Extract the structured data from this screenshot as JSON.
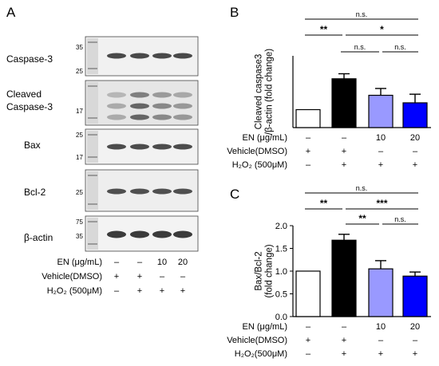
{
  "panel_a": {
    "letter": "A",
    "blots": [
      {
        "name": "Caspase-3",
        "markers": [
          "35",
          "25"
        ],
        "band_color": "#2b2b2b",
        "bg": "#f1f1f1"
      },
      {
        "name": "Cleaved Caspase-3",
        "markers": [
          "17"
        ],
        "band_color": "#3a3a3a",
        "bg": "#e6e6e6"
      },
      {
        "name": "Bax",
        "markers": [
          "25",
          "17"
        ],
        "band_color": "#2f2f2f",
        "bg": "#f2f2f2"
      },
      {
        "name": "Bcl-2",
        "markers": [
          "25"
        ],
        "band_color": "#333333",
        "bg": "#eeeeee"
      },
      {
        "name": "β-actin",
        "markers": [
          "75",
          "35"
        ],
        "band_color": "#1a1a1a",
        "bg": "#f3f3f3"
      }
    ],
    "conditions": {
      "en": {
        "label": "EN (μg/mL)",
        "values": [
          "–",
          "–",
          "10",
          "20"
        ]
      },
      "vehicle": {
        "label": "Vehicle(DMSO)",
        "values": [
          "+",
          "+",
          "–",
          "–"
        ]
      },
      "h2o2": {
        "label": "H₂O₂ (500μM)",
        "values": [
          "–",
          "+",
          "+",
          "+"
        ]
      }
    }
  },
  "panel_b_conditions": {
    "en": {
      "label": "EN (μg/mL)",
      "values": [
        "–",
        "–",
        "10",
        "20"
      ]
    },
    "vehicle": {
      "label": "Vehicle(DMSO)",
      "values": [
        "+",
        "+",
        "–",
        "–"
      ]
    },
    "h2o2": {
      "label": "H₂O₂ (500μM)",
      "values": [
        "–",
        "+",
        "+",
        "+"
      ]
    }
  },
  "panel_c_conditions": {
    "en": {
      "label": "EN (μg/mL)",
      "values": [
        "–",
        "–",
        "10",
        "20"
      ]
    },
    "vehicle": {
      "label": "Vehicle(DMSO)",
      "values": [
        "+",
        "+",
        "–",
        "–"
      ]
    },
    "h2o2": {
      "label": "H₂O₂(500μM)",
      "values": [
        "–",
        "+",
        "+",
        "+"
      ]
    }
  },
  "chart_data": [
    {
      "panel": "B",
      "type": "bar",
      "ylabel": "Cleaved caspase3 /β-actin (fold change)",
      "ylabel_lines": [
        "Cleaved caspase3",
        "/β-actin (fold change)"
      ],
      "categories": [
        "Vehicle",
        "H2O2 + Vehicle",
        "H2O2 + EN 10",
        "H2O2 + EN 20"
      ],
      "values": [
        1.0,
        2.72,
        1.8,
        1.38
      ],
      "errors": [
        0,
        0.28,
        0.38,
        0.48
      ],
      "colors": [
        "#ffffff",
        "#000000",
        "#9999ff",
        "#0000ff"
      ],
      "ylim": [
        0,
        4
      ],
      "yticks": [],
      "significance": [
        {
          "from": 0,
          "to": 1,
          "label": "**",
          "level": 1
        },
        {
          "from": 1,
          "to": 2,
          "label": "n.s.",
          "level": 2
        },
        {
          "from": 2,
          "to": 3,
          "label": "n.s.",
          "level": 2
        },
        {
          "from": 1,
          "to": 3,
          "label": "*",
          "level": 3
        },
        {
          "from": 0,
          "to": 3,
          "label": "n.s.",
          "level": 4
        }
      ]
    },
    {
      "panel": "C",
      "type": "bar",
      "ylabel": "Bax/Bcl-2 (fold change)",
      "ylabel_lines": [
        "Bax/Bcl-2",
        "(fold change)"
      ],
      "categories": [
        "Vehicle",
        "H2O2 + Vehicle",
        "H2O2 + EN 10",
        "H2O2 + EN 20"
      ],
      "values": [
        1.0,
        1.68,
        1.05,
        0.89
      ],
      "errors": [
        0,
        0.13,
        0.18,
        0.09
      ],
      "colors": [
        "#ffffff",
        "#000000",
        "#9999ff",
        "#0000ff"
      ],
      "ylim": [
        0,
        2
      ],
      "yticks": [
        "0.0",
        "0.5",
        "1.0",
        "1.5",
        "2.0"
      ],
      "significance": [
        {
          "from": 0,
          "to": 1,
          "label": "**",
          "level": 1
        },
        {
          "from": 1,
          "to": 2,
          "label": "**",
          "level": 2
        },
        {
          "from": 2,
          "to": 3,
          "label": "n.s.",
          "level": 2
        },
        {
          "from": 1,
          "to": 3,
          "label": "***",
          "level": 3
        },
        {
          "from": 0,
          "to": 3,
          "label": "n.s.",
          "level": 4
        }
      ]
    }
  ]
}
